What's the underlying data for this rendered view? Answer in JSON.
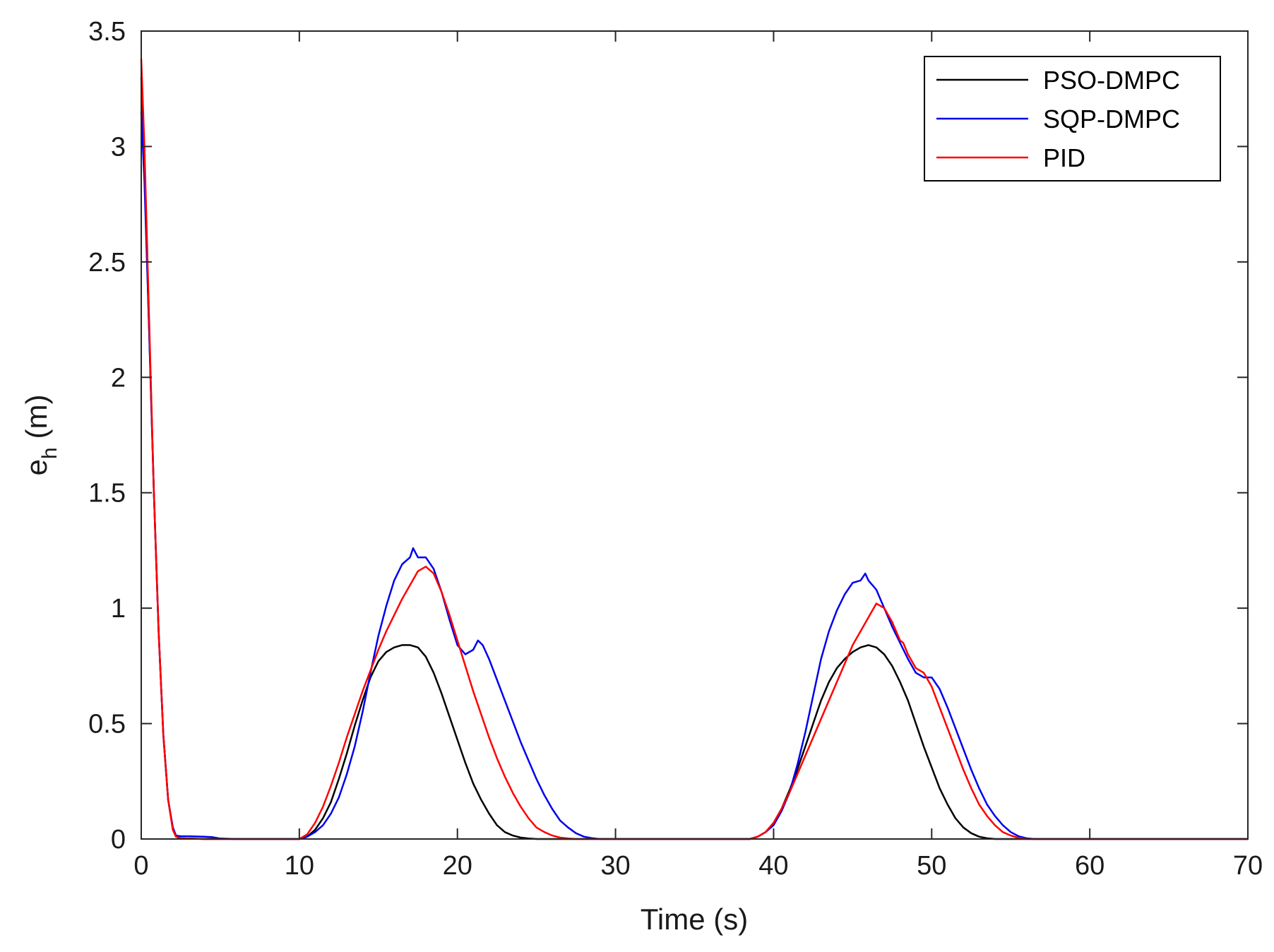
{
  "chart_data": {
    "type": "line",
    "title": "",
    "xlabel": "Time (s)",
    "ylabel_main": "e",
    "ylabel_sub": "h",
    "ylabel_unit": "(m)",
    "xlim": [
      0,
      70
    ],
    "ylim": [
      0,
      3.5
    ],
    "xticks": [
      0,
      10,
      20,
      30,
      40,
      50,
      60,
      70
    ],
    "yticks": [
      0,
      0.5,
      1,
      1.5,
      2,
      2.5,
      3,
      3.5
    ],
    "xtick_labels": [
      "0",
      "10",
      "20",
      "30",
      "40",
      "50",
      "60",
      "70"
    ],
    "ytick_labels": [
      "0",
      "0.5",
      "1",
      "1.5",
      "2",
      "2.5",
      "3",
      "3.5"
    ],
    "grid": false,
    "legend_position": "top-right",
    "series": [
      {
        "name": "PSO-DMPC",
        "color": "#000000",
        "x": [
          0,
          0.2,
          0.5,
          0.8,
          1.1,
          1.4,
          1.7,
          2.0,
          2.2,
          2.5,
          4,
          6,
          8,
          10,
          10.5,
          11,
          11.5,
          12,
          12.5,
          13,
          13.5,
          14,
          14.5,
          15,
          15.5,
          16,
          16.5,
          17,
          17.5,
          18,
          18.5,
          19,
          19.5,
          20,
          20.5,
          21,
          21.5,
          22,
          22.5,
          23,
          23.5,
          24,
          24.5,
          25,
          26,
          28,
          30,
          35,
          38.5,
          39,
          39.5,
          40,
          40.5,
          41,
          41.5,
          42,
          42.5,
          43,
          43.5,
          44,
          44.5,
          45,
          45.5,
          46,
          46.5,
          47,
          47.5,
          48,
          48.5,
          49,
          49.5,
          50,
          50.5,
          51,
          51.5,
          52,
          52.5,
          53,
          53.5,
          54,
          56,
          60,
          65,
          70
        ],
        "y": [
          3.3,
          2.9,
          2.2,
          1.5,
          0.9,
          0.45,
          0.17,
          0.04,
          0.01,
          0.003,
          0,
          0,
          0,
          0,
          0.01,
          0.04,
          0.09,
          0.16,
          0.26,
          0.37,
          0.49,
          0.6,
          0.7,
          0.77,
          0.81,
          0.83,
          0.84,
          0.84,
          0.83,
          0.79,
          0.72,
          0.63,
          0.53,
          0.43,
          0.33,
          0.24,
          0.17,
          0.11,
          0.06,
          0.03,
          0.015,
          0.006,
          0.002,
          0,
          0,
          0,
          0,
          0,
          0,
          0.01,
          0.03,
          0.07,
          0.13,
          0.21,
          0.3,
          0.4,
          0.5,
          0.6,
          0.68,
          0.74,
          0.78,
          0.81,
          0.83,
          0.84,
          0.83,
          0.8,
          0.75,
          0.68,
          0.6,
          0.5,
          0.4,
          0.31,
          0.22,
          0.15,
          0.09,
          0.05,
          0.025,
          0.01,
          0.003,
          0,
          0,
          0,
          0,
          0
        ]
      },
      {
        "name": "SQP-DMPC",
        "color": "#0000ee",
        "x": [
          0,
          0.2,
          0.5,
          0.8,
          1.1,
          1.4,
          1.7,
          2.0,
          2.2,
          2.5,
          3,
          4,
          4.5,
          5,
          6,
          8,
          10,
          10.5,
          11,
          11.5,
          12,
          12.5,
          13,
          13.5,
          14,
          14.5,
          15,
          15.5,
          16,
          16.5,
          17,
          17.2,
          17.5,
          18,
          18.5,
          19,
          19.5,
          20,
          20.5,
          21,
          21.3,
          21.6,
          22,
          22.5,
          23,
          23.5,
          24,
          24.5,
          25,
          25.5,
          26,
          26.5,
          27,
          27.5,
          28,
          28.5,
          29,
          30,
          35,
          38.5,
          39,
          39.5,
          40,
          40.5,
          41,
          41.5,
          42,
          42.5,
          43,
          43.5,
          44,
          44.5,
          45,
          45.5,
          45.8,
          46,
          46.5,
          47,
          47.5,
          48,
          48.5,
          49,
          49.5,
          50,
          50.5,
          51,
          51.5,
          52,
          52.5,
          53,
          53.5,
          54,
          54.5,
          55,
          55.5,
          56,
          56.5,
          58,
          60,
          65,
          70
        ],
        "y": [
          3.15,
          2.85,
          2.2,
          1.5,
          0.9,
          0.45,
          0.17,
          0.05,
          0.015,
          0.012,
          0.012,
          0.01,
          0.008,
          0.002,
          0,
          0,
          0,
          0.01,
          0.03,
          0.06,
          0.11,
          0.18,
          0.28,
          0.4,
          0.55,
          0.72,
          0.88,
          1.01,
          1.12,
          1.19,
          1.22,
          1.26,
          1.22,
          1.22,
          1.17,
          1.07,
          0.95,
          0.84,
          0.8,
          0.82,
          0.86,
          0.84,
          0.78,
          0.69,
          0.6,
          0.51,
          0.42,
          0.34,
          0.26,
          0.19,
          0.13,
          0.08,
          0.05,
          0.025,
          0.01,
          0.004,
          0,
          0,
          0,
          0,
          0.01,
          0.03,
          0.06,
          0.12,
          0.2,
          0.32,
          0.46,
          0.62,
          0.78,
          0.9,
          0.99,
          1.06,
          1.11,
          1.12,
          1.15,
          1.12,
          1.08,
          1.0,
          0.92,
          0.85,
          0.78,
          0.72,
          0.7,
          0.7,
          0.65,
          0.57,
          0.48,
          0.39,
          0.3,
          0.22,
          0.15,
          0.1,
          0.06,
          0.03,
          0.012,
          0.003,
          0,
          0,
          0,
          0,
          0
        ]
      },
      {
        "name": "PID",
        "color": "#ff0000",
        "x": [
          0,
          0.2,
          0.5,
          0.8,
          1.1,
          1.4,
          1.7,
          2.0,
          2.2,
          2.5,
          4,
          6,
          8,
          10,
          10.5,
          11,
          11.5,
          12,
          12.5,
          13,
          13.5,
          14,
          14.5,
          15,
          15.5,
          16,
          16.5,
          17,
          17.5,
          18,
          18.5,
          19,
          19.5,
          20,
          20.5,
          21,
          21.5,
          22,
          22.5,
          23,
          23.5,
          24,
          24.5,
          25,
          25.5,
          26,
          26.5,
          27,
          27.5,
          28,
          30,
          35,
          38.5,
          39,
          39.5,
          40,
          40.5,
          41,
          41.5,
          42,
          42.5,
          43,
          43.5,
          44,
          44.5,
          45,
          45.5,
          46,
          46.5,
          47,
          47.5,
          48,
          48.2,
          48.5,
          49,
          49.5,
          50,
          50.5,
          51,
          51.5,
          52,
          52.5,
          53,
          53.5,
          54,
          54.5,
          55,
          55.5,
          56,
          58,
          60,
          65,
          70
        ],
        "y": [
          3.38,
          3.0,
          2.25,
          1.5,
          0.9,
          0.45,
          0.17,
          0.04,
          0.01,
          0.003,
          0,
          0,
          0,
          0,
          0.02,
          0.07,
          0.14,
          0.23,
          0.33,
          0.44,
          0.54,
          0.64,
          0.73,
          0.82,
          0.9,
          0.97,
          1.04,
          1.1,
          1.16,
          1.18,
          1.15,
          1.07,
          0.97,
          0.86,
          0.75,
          0.64,
          0.54,
          0.44,
          0.35,
          0.27,
          0.2,
          0.14,
          0.09,
          0.05,
          0.03,
          0.015,
          0.006,
          0.002,
          0,
          0,
          0,
          0,
          0,
          0.01,
          0.03,
          0.07,
          0.13,
          0.2,
          0.28,
          0.36,
          0.44,
          0.52,
          0.6,
          0.68,
          0.76,
          0.84,
          0.9,
          0.96,
          1.02,
          1.0,
          0.94,
          0.86,
          0.85,
          0.8,
          0.74,
          0.72,
          0.66,
          0.57,
          0.48,
          0.39,
          0.3,
          0.22,
          0.15,
          0.1,
          0.06,
          0.03,
          0.015,
          0.005,
          0,
          0,
          0,
          0,
          0
        ]
      }
    ]
  }
}
